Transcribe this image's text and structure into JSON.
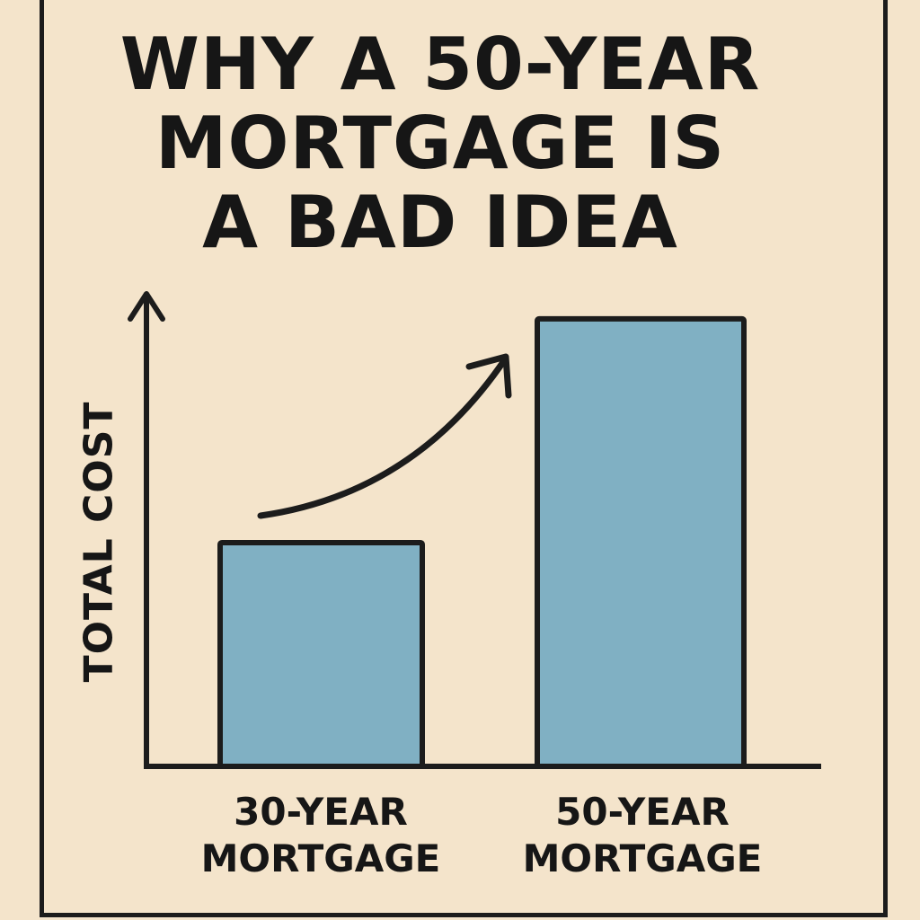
{
  "chart_data": {
    "type": "bar",
    "title": [
      "WHY A 50-YEAR",
      "MORTGAGE IS",
      "A BAD IDEA"
    ],
    "ylabel": "TOTAL COST",
    "xlabel": "",
    "categories": [
      [
        "30-YEAR",
        "MORTGAGE"
      ],
      [
        "50-YEAR",
        "MORTGAGE"
      ]
    ],
    "values": [
      0.5,
      1.0
    ],
    "ylim": [
      0,
      1.05
    ],
    "grid": false,
    "legend": "none",
    "annotation": "upward-curved-arrow from 30-year bar to 50-year bar",
    "colors": {
      "bar": "#80b0c3",
      "outline": "#1c1c1c",
      "background": "#f4e4cb"
    }
  }
}
